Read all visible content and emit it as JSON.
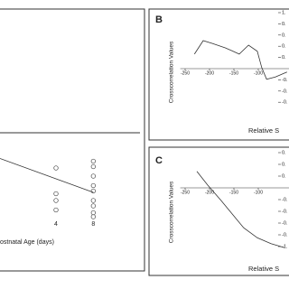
{
  "chart_data": [
    {
      "type": "scatter",
      "xlabel": "ostnatal Age (days)",
      "x": [
        4,
        4,
        4,
        4,
        8,
        8,
        8,
        8,
        8,
        8,
        8,
        8,
        8
      ],
      "values": [
        7.6,
        5.7,
        5.2,
        4.5,
        8.1,
        7.7,
        7.0,
        6.3,
        5.9,
        5.2,
        4.8,
        4.3,
        4.0
      ],
      "xlim": [
        -2,
        13
      ],
      "xticks": [
        4,
        8
      ],
      "ylim": [
        0,
        10
      ],
      "color": "#444",
      "fit": {
        "x": [
          -2,
          8
        ],
        "values": [
          8.3,
          5.8
        ]
      }
    },
    {
      "type": "line",
      "panel_label": "B",
      "ylabel": "Crosscorrelation Values",
      "xlabel": "Relative S",
      "x": [
        -231,
        -213,
        -194,
        -167,
        -139,
        -120,
        -102,
        -93,
        -83,
        -65,
        -41
      ],
      "values": [
        0.26,
        0.5,
        0.45,
        0.37,
        0.26,
        0.42,
        0.31,
        0.02,
        -0.19,
        -0.15,
        -0.06
      ],
      "xlim": [
        -260,
        -37
      ],
      "xticks": [
        -250,
        -200,
        -150,
        -100
      ],
      "ylim": [
        -0.8,
        1.0
      ],
      "yticks": [
        {
          "value": 1.0,
          "label": "1."
        },
        {
          "value": 0.8,
          "label": "0."
        },
        {
          "value": 0.6,
          "label": "0."
        },
        {
          "value": 0.4,
          "label": "0."
        },
        {
          "value": 0.2,
          "label": "0."
        },
        {
          "value": -0.2,
          "label": "-0."
        },
        {
          "value": -0.4,
          "label": "-0."
        },
        {
          "value": -0.6,
          "label": "-0."
        }
      ],
      "color": "#333"
    },
    {
      "type": "line",
      "panel_label": "C",
      "ylabel": "Crosscorrelation Values",
      "xlabel": "Relative S",
      "x": [
        -226,
        -204,
        -176,
        -152,
        -130,
        -102,
        -74,
        -46
      ],
      "values": [
        0.28,
        0.05,
        -0.22,
        -0.46,
        -0.68,
        -0.85,
        -0.95,
        -1.02
      ],
      "xlim": [
        -260,
        -37
      ],
      "xticks": [
        -250,
        -200,
        -150,
        -100
      ],
      "ylim": [
        -1.2,
        0.6
      ],
      "yticks": [
        {
          "value": 0.6,
          "label": "0."
        },
        {
          "value": 0.4,
          "label": "0."
        },
        {
          "value": 0.2,
          "label": "0."
        },
        {
          "value": -0.2,
          "label": "-0."
        },
        {
          "value": -0.4,
          "label": "-0."
        },
        {
          "value": -0.6,
          "label": "-0."
        },
        {
          "value": -0.8,
          "label": "-0."
        },
        {
          "value": -1.0,
          "label": "-1."
        }
      ],
      "color": "#333"
    }
  ]
}
